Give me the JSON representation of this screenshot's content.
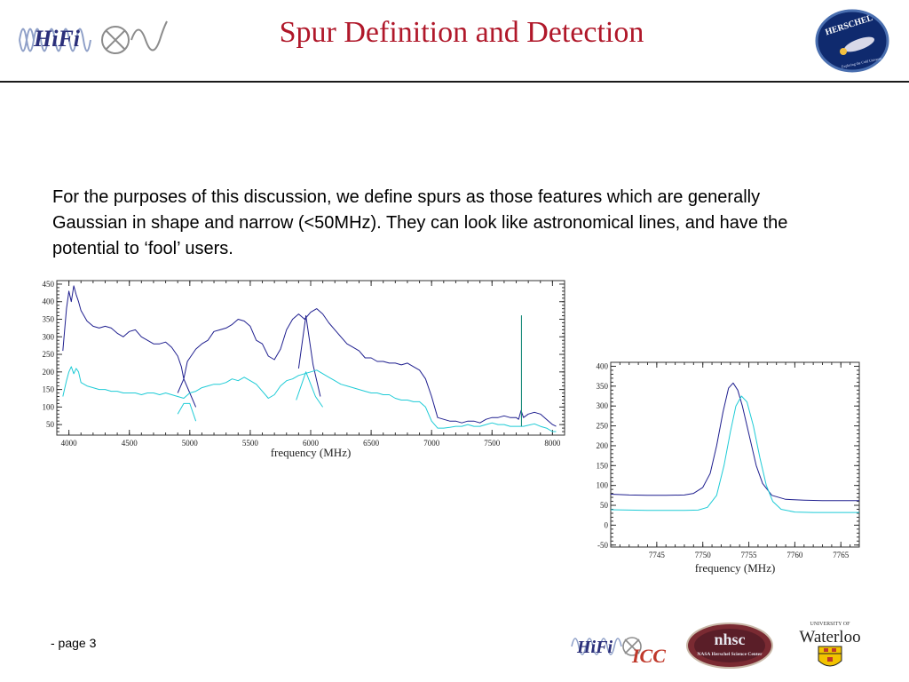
{
  "slide": {
    "title": "Spur Definition and Detection",
    "body": "For the purposes of this discussion, we define spurs as those features which are generally Gaussian in shape and narrow (<50MHz).  They can look like astronomical lines, and have the potential to ‘fool’ users.",
    "footer": "- page 3"
  },
  "logos": {
    "hifi": "HiFi",
    "herschel": "HERSCHEL",
    "herschel_motto": "Exploring the Cold Universe",
    "hifi_icc_1": "HiFi",
    "hifi_icc_2": "ICC",
    "nhsc": "nhsc",
    "nhsc_sub": "NASA Herschel Science Center",
    "waterloo_top": "UNIVERSITY OF",
    "waterloo": "Waterloo"
  },
  "colors": {
    "title": "#b0182a",
    "dark_series": "#1f1f8f",
    "light_series": "#1ecbd6",
    "spur_line": "#1a8c7a"
  },
  "chart_data": [
    {
      "type": "line",
      "title": "",
      "xlabel": "frequency (MHz)",
      "ylabel": "",
      "xlim": [
        3900,
        8100
      ],
      "ylim": [
        20,
        460
      ],
      "xticks": [
        4000,
        4500,
        5000,
        5500,
        6000,
        6500,
        7000,
        7500,
        8000
      ],
      "yticks": [
        50,
        100,
        150,
        200,
        250,
        300,
        350,
        400,
        450
      ],
      "grid": false,
      "series": [
        {
          "color": "#1f1f8f",
          "points": [
            [
              3950,
              260
            ],
            [
              3980,
              380
            ],
            [
              4000,
              430
            ],
            [
              4020,
              400
            ],
            [
              4040,
              445
            ],
            [
              4060,
              420
            ],
            [
              4080,
              400
            ],
            [
              4100,
              375
            ],
            [
              4150,
              345
            ],
            [
              4200,
              330
            ],
            [
              4250,
              325
            ],
            [
              4300,
              330
            ],
            [
              4350,
              325
            ],
            [
              4400,
              310
            ],
            [
              4450,
              300
            ],
            [
              4500,
              315
            ],
            [
              4550,
              320
            ],
            [
              4600,
              300
            ],
            [
              4650,
              290
            ],
            [
              4700,
              280
            ],
            [
              4750,
              280
            ],
            [
              4800,
              285
            ],
            [
              4850,
              270
            ],
            [
              4900,
              245
            ],
            [
              4930,
              215
            ],
            [
              4950,
              180
            ],
            [
              4980,
              230
            ],
            [
              5050,
              265
            ],
            [
              5100,
              280
            ],
            [
              5150,
              290
            ],
            [
              5200,
              315
            ],
            [
              5250,
              320
            ],
            [
              5300,
              325
            ],
            [
              5350,
              335
            ],
            [
              5400,
              350
            ],
            [
              5450,
              345
            ],
            [
              5500,
              330
            ],
            [
              5550,
              290
            ],
            [
              5600,
              280
            ],
            [
              5650,
              245
            ],
            [
              5700,
              235
            ],
            [
              5750,
              265
            ],
            [
              5800,
              320
            ],
            [
              5850,
              350
            ],
            [
              5900,
              365
            ],
            [
              5950,
              350
            ],
            [
              6000,
              370
            ],
            [
              6050,
              380
            ],
            [
              6100,
              365
            ],
            [
              6150,
              340
            ],
            [
              6200,
              320
            ],
            [
              6250,
              300
            ],
            [
              6300,
              280
            ],
            [
              6350,
              270
            ],
            [
              6400,
              260
            ],
            [
              6450,
              240
            ],
            [
              6500,
              240
            ],
            [
              6550,
              230
            ],
            [
              6600,
              230
            ],
            [
              6650,
              225
            ],
            [
              6700,
              225
            ],
            [
              6750,
              220
            ],
            [
              6800,
              225
            ],
            [
              6850,
              215
            ],
            [
              6900,
              205
            ],
            [
              6950,
              180
            ],
            [
              7000,
              130
            ],
            [
              7050,
              70
            ],
            [
              7100,
              65
            ],
            [
              7150,
              60
            ],
            [
              7200,
              60
            ],
            [
              7250,
              55
            ],
            [
              7300,
              60
            ],
            [
              7350,
              60
            ],
            [
              7400,
              55
            ],
            [
              7450,
              65
            ],
            [
              7500,
              70
            ],
            [
              7550,
              70
            ],
            [
              7600,
              75
            ],
            [
              7650,
              70
            ],
            [
              7700,
              70
            ],
            [
              7720,
              65
            ],
            [
              7740,
              90
            ],
            [
              7760,
              70
            ],
            [
              7800,
              80
            ],
            [
              7850,
              85
            ],
            [
              7900,
              80
            ],
            [
              7950,
              65
            ],
            [
              8000,
              50
            ],
            [
              8030,
              45
            ]
          ]
        },
        {
          "color": "#1f1f8f",
          "points": [
            [
              4900,
              140
            ],
            [
              4950,
              180
            ],
            [
              5000,
              140
            ],
            [
              5050,
              100
            ]
          ]
        },
        {
          "color": "#1f1f8f",
          "points": [
            [
              5900,
              210
            ],
            [
              5960,
              360
            ],
            [
              6020,
              220
            ],
            [
              6080,
              130
            ]
          ]
        },
        {
          "color": "#1ecbd6",
          "points": [
            [
              3950,
              130
            ],
            [
              3980,
              175
            ],
            [
              4000,
              200
            ],
            [
              4020,
              215
            ],
            [
              4040,
              195
            ],
            [
              4060,
              210
            ],
            [
              4080,
              200
            ],
            [
              4100,
              170
            ],
            [
              4150,
              160
            ],
            [
              4200,
              155
            ],
            [
              4250,
              150
            ],
            [
              4300,
              150
            ],
            [
              4350,
              145
            ],
            [
              4400,
              145
            ],
            [
              4450,
              140
            ],
            [
              4500,
              140
            ],
            [
              4550,
              140
            ],
            [
              4600,
              135
            ],
            [
              4650,
              140
            ],
            [
              4700,
              140
            ],
            [
              4750,
              135
            ],
            [
              4800,
              140
            ],
            [
              4850,
              135
            ],
            [
              4900,
              130
            ],
            [
              4950,
              125
            ],
            [
              5000,
              140
            ],
            [
              5050,
              145
            ],
            [
              5100,
              155
            ],
            [
              5150,
              160
            ],
            [
              5200,
              165
            ],
            [
              5250,
              165
            ],
            [
              5300,
              170
            ],
            [
              5350,
              180
            ],
            [
              5400,
              175
            ],
            [
              5450,
              185
            ],
            [
              5500,
              175
            ],
            [
              5550,
              165
            ],
            [
              5600,
              145
            ],
            [
              5650,
              125
            ],
            [
              5700,
              135
            ],
            [
              5750,
              160
            ],
            [
              5800,
              175
            ],
            [
              5850,
              180
            ],
            [
              5900,
              190
            ],
            [
              5950,
              195
            ],
            [
              6000,
              200
            ],
            [
              6050,
              205
            ],
            [
              6100,
              195
            ],
            [
              6150,
              185
            ],
            [
              6200,
              175
            ],
            [
              6250,
              165
            ],
            [
              6300,
              160
            ],
            [
              6350,
              155
            ],
            [
              6400,
              150
            ],
            [
              6450,
              145
            ],
            [
              6500,
              140
            ],
            [
              6550,
              140
            ],
            [
              6600,
              135
            ],
            [
              6650,
              135
            ],
            [
              6700,
              125
            ],
            [
              6750,
              120
            ],
            [
              6800,
              120
            ],
            [
              6850,
              115
            ],
            [
              6900,
              115
            ],
            [
              6950,
              100
            ],
            [
              7000,
              60
            ],
            [
              7050,
              40
            ],
            [
              7100,
              40
            ],
            [
              7150,
              42
            ],
            [
              7200,
              45
            ],
            [
              7250,
              45
            ],
            [
              7300,
              50
            ],
            [
              7350,
              45
            ],
            [
              7400,
              45
            ],
            [
              7450,
              50
            ],
            [
              7500,
              55
            ],
            [
              7550,
              50
            ],
            [
              7600,
              50
            ],
            [
              7650,
              45
            ],
            [
              7700,
              45
            ],
            [
              7760,
              45
            ],
            [
              7800,
              48
            ],
            [
              7850,
              52
            ],
            [
              7900,
              45
            ],
            [
              7950,
              40
            ],
            [
              8000,
              30
            ],
            [
              8030,
              30
            ]
          ]
        },
        {
          "color": "#1ecbd6",
          "points": [
            [
              4900,
              80
            ],
            [
              4950,
              110
            ],
            [
              5000,
              110
            ],
            [
              5050,
              60
            ]
          ]
        },
        {
          "color": "#1ecbd6",
          "points": [
            [
              5880,
              120
            ],
            [
              5960,
              200
            ],
            [
              6040,
              130
            ],
            [
              6100,
              100
            ]
          ]
        },
        {
          "color": "#1a8c7a",
          "points": [
            [
              7743,
              45
            ],
            [
              7743,
              360
            ],
            [
              7744,
              360
            ],
            [
              7744,
              45
            ]
          ]
        }
      ]
    },
    {
      "type": "line",
      "title": "",
      "xlabel": "frequency (MHz)",
      "ylabel": "",
      "xlim": [
        7740,
        7767
      ],
      "ylim": [
        -55,
        410
      ],
      "xticks": [
        7745,
        7750,
        7755,
        7760,
        7765
      ],
      "yticks": [
        -50,
        0,
        50,
        100,
        150,
        200,
        250,
        300,
        350,
        400
      ],
      "grid": false,
      "series": [
        {
          "color": "#1f1f8f",
          "points": [
            [
              7740,
              78
            ],
            [
              7742,
              76
            ],
            [
              7744,
              75
            ],
            [
              7746,
              75
            ],
            [
              7748,
              76
            ],
            [
              7749,
              80
            ],
            [
              7750,
              95
            ],
            [
              7750.8,
              130
            ],
            [
              7751.5,
              200
            ],
            [
              7752.2,
              285
            ],
            [
              7752.8,
              345
            ],
            [
              7753.3,
              358
            ],
            [
              7753.8,
              340
            ],
            [
              7754.3,
              300
            ],
            [
              7755,
              230
            ],
            [
              7755.8,
              150
            ],
            [
              7756.5,
              105
            ],
            [
              7757.5,
              75
            ],
            [
              7759,
              65
            ],
            [
              7761,
              63
            ],
            [
              7763,
              62
            ],
            [
              7765,
              62
            ],
            [
              7767,
              62
            ]
          ]
        },
        {
          "color": "#1ecbd6",
          "points": [
            [
              7740,
              39
            ],
            [
              7742,
              38
            ],
            [
              7744,
              37
            ],
            [
              7746,
              37
            ],
            [
              7748,
              37
            ],
            [
              7749.5,
              38
            ],
            [
              7750.5,
              45
            ],
            [
              7751.5,
              75
            ],
            [
              7752.3,
              150
            ],
            [
              7753,
              235
            ],
            [
              7753.6,
              300
            ],
            [
              7754.2,
              325
            ],
            [
              7754.8,
              310
            ],
            [
              7755.5,
              250
            ],
            [
              7756.2,
              170
            ],
            [
              7756.9,
              100
            ],
            [
              7757.6,
              60
            ],
            [
              7758.5,
              40
            ],
            [
              7760,
              33
            ],
            [
              7762,
              32
            ],
            [
              7765,
              32
            ],
            [
              7767,
              32
            ]
          ]
        }
      ]
    }
  ]
}
